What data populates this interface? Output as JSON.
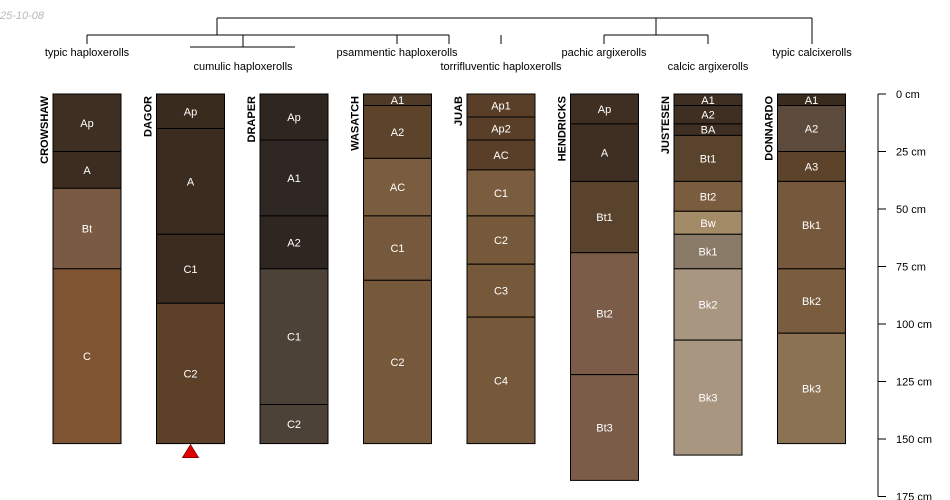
{
  "stamp": "25-10-08",
  "taxa": [
    "typic haploxerolls",
    "cumulic haploxerolls",
    "psammentic haploxerolls",
    "torrifluventic haploxerolls",
    "pachic argixerolls",
    "calcic argixerolls",
    "typic calcixerolls"
  ],
  "depth_axis": {
    "max": 175,
    "ticks": [
      {
        "value": 0,
        "label": "0 cm"
      },
      {
        "value": 25,
        "label": "25 cm"
      },
      {
        "value": 50,
        "label": "50 cm"
      },
      {
        "value": 75,
        "label": "75 cm"
      },
      {
        "value": 100,
        "label": "100 cm"
      },
      {
        "value": 125,
        "label": "125 cm"
      },
      {
        "value": 150,
        "label": "150 cm"
      },
      {
        "value": 175,
        "label": "175 cm"
      }
    ]
  },
  "profiles": [
    {
      "name": "CROWSHAW",
      "horizons": [
        {
          "name": "Ap",
          "top": 0,
          "bottom": 25,
          "color": "#3f2f22"
        },
        {
          "name": "A",
          "top": 25,
          "bottom": 41,
          "color": "#3d2d20"
        },
        {
          "name": "Bt",
          "top": 41,
          "bottom": 76,
          "color": "#7a5a43"
        },
        {
          "name": "C",
          "top": 76,
          "bottom": 152,
          "color": "#7f5433"
        }
      ]
    },
    {
      "name": "DAGOR",
      "marker": true,
      "horizons": [
        {
          "name": "Ap",
          "top": 0,
          "bottom": 15,
          "color": "#3a2b1f"
        },
        {
          "name": "A",
          "top": 15,
          "bottom": 61,
          "color": "#3b2c1f"
        },
        {
          "name": "C1",
          "top": 61,
          "bottom": 91,
          "color": "#3b2c1f"
        },
        {
          "name": "C2",
          "top": 91,
          "bottom": 152,
          "color": "#5c4128"
        }
      ]
    },
    {
      "name": "DRAPER",
      "horizons": [
        {
          "name": "Ap",
          "top": 0,
          "bottom": 20,
          "color": "#2f2620"
        },
        {
          "name": "A1",
          "top": 20,
          "bottom": 53,
          "color": "#2f2724"
        },
        {
          "name": "A2",
          "top": 53,
          "bottom": 76,
          "color": "#2f2622"
        },
        {
          "name": "C1",
          "top": 76,
          "bottom": 135,
          "color": "#4c4238"
        },
        {
          "name": "C2",
          "top": 135,
          "bottom": 152,
          "color": "#4c4238"
        }
      ]
    },
    {
      "name": "WASATCH",
      "horizons": [
        {
          "name": "A1",
          "top": 0,
          "bottom": 5,
          "color": "#4e3a26"
        },
        {
          "name": "A2",
          "top": 5,
          "bottom": 28,
          "color": "#5c4329"
        },
        {
          "name": "AC",
          "top": 28,
          "bottom": 53,
          "color": "#7a5c3f"
        },
        {
          "name": "C1",
          "top": 53,
          "bottom": 81,
          "color": "#76593c"
        },
        {
          "name": "C2",
          "top": 81,
          "bottom": 152,
          "color": "#76583a"
        }
      ]
    },
    {
      "name": "JUAB",
      "horizons": [
        {
          "name": "Ap1",
          "top": 0,
          "bottom": 10,
          "color": "#5a3f28"
        },
        {
          "name": "Ap2",
          "top": 10,
          "bottom": 20,
          "color": "#5a3f28"
        },
        {
          "name": "AC",
          "top": 20,
          "bottom": 33,
          "color": "#5a3f28"
        },
        {
          "name": "C1",
          "top": 33,
          "bottom": 53,
          "color": "#7a5c3f"
        },
        {
          "name": "C2",
          "top": 53,
          "bottom": 74,
          "color": "#76583a"
        },
        {
          "name": "C3",
          "top": 74,
          "bottom": 97,
          "color": "#76583a"
        },
        {
          "name": "C4",
          "top": 97,
          "bottom": 152,
          "color": "#76583a"
        }
      ]
    },
    {
      "name": "HENDRICKS",
      "horizons": [
        {
          "name": "Ap",
          "top": 0,
          "bottom": 13,
          "color": "#3f2f22"
        },
        {
          "name": "A",
          "top": 13,
          "bottom": 38,
          "color": "#3f2f22"
        },
        {
          "name": "Bt1",
          "top": 38,
          "bottom": 69,
          "color": "#59432d"
        },
        {
          "name": "Bt2",
          "top": 69,
          "bottom": 122,
          "color": "#7a5c48"
        },
        {
          "name": "Bt3",
          "top": 122,
          "bottom": 168,
          "color": "#7a5c48"
        }
      ]
    },
    {
      "name": "JUSTESEN",
      "horizons": [
        {
          "name": "A1",
          "top": 0,
          "bottom": 5,
          "color": "#3f2f22"
        },
        {
          "name": "A2",
          "top": 5,
          "bottom": 13,
          "color": "#3f2f22"
        },
        {
          "name": "BA",
          "top": 13,
          "bottom": 18,
          "color": "#3f2f22"
        },
        {
          "name": "Bt1",
          "top": 18,
          "bottom": 38,
          "color": "#59432d"
        },
        {
          "name": "Bt2",
          "top": 38,
          "bottom": 51,
          "color": "#7a5c3f"
        },
        {
          "name": "Bw",
          "top": 51,
          "bottom": 61,
          "color": "#a48b68"
        },
        {
          "name": "Bk1",
          "top": 61,
          "bottom": 76,
          "color": "#8a7a68"
        },
        {
          "name": "Bk2",
          "top": 76,
          "bottom": 107,
          "color": "#a89680"
        },
        {
          "name": "Bk3",
          "top": 107,
          "bottom": 157,
          "color": "#a89680"
        }
      ]
    },
    {
      "name": "DONNARDO",
      "horizons": [
        {
          "name": "A1",
          "top": 0,
          "bottom": 5,
          "color": "#3a2b1f"
        },
        {
          "name": "A2",
          "top": 5,
          "bottom": 25,
          "color": "#5c4a3d"
        },
        {
          "name": "A3",
          "top": 25,
          "bottom": 38,
          "color": "#5c4329"
        },
        {
          "name": "Bk1",
          "top": 38,
          "bottom": 76,
          "color": "#76593c"
        },
        {
          "name": "Bk2",
          "top": 76,
          "bottom": 104,
          "color": "#7a5c3f"
        },
        {
          "name": "Bk3",
          "top": 104,
          "bottom": 152,
          "color": "#8a7252"
        }
      ]
    }
  ]
}
